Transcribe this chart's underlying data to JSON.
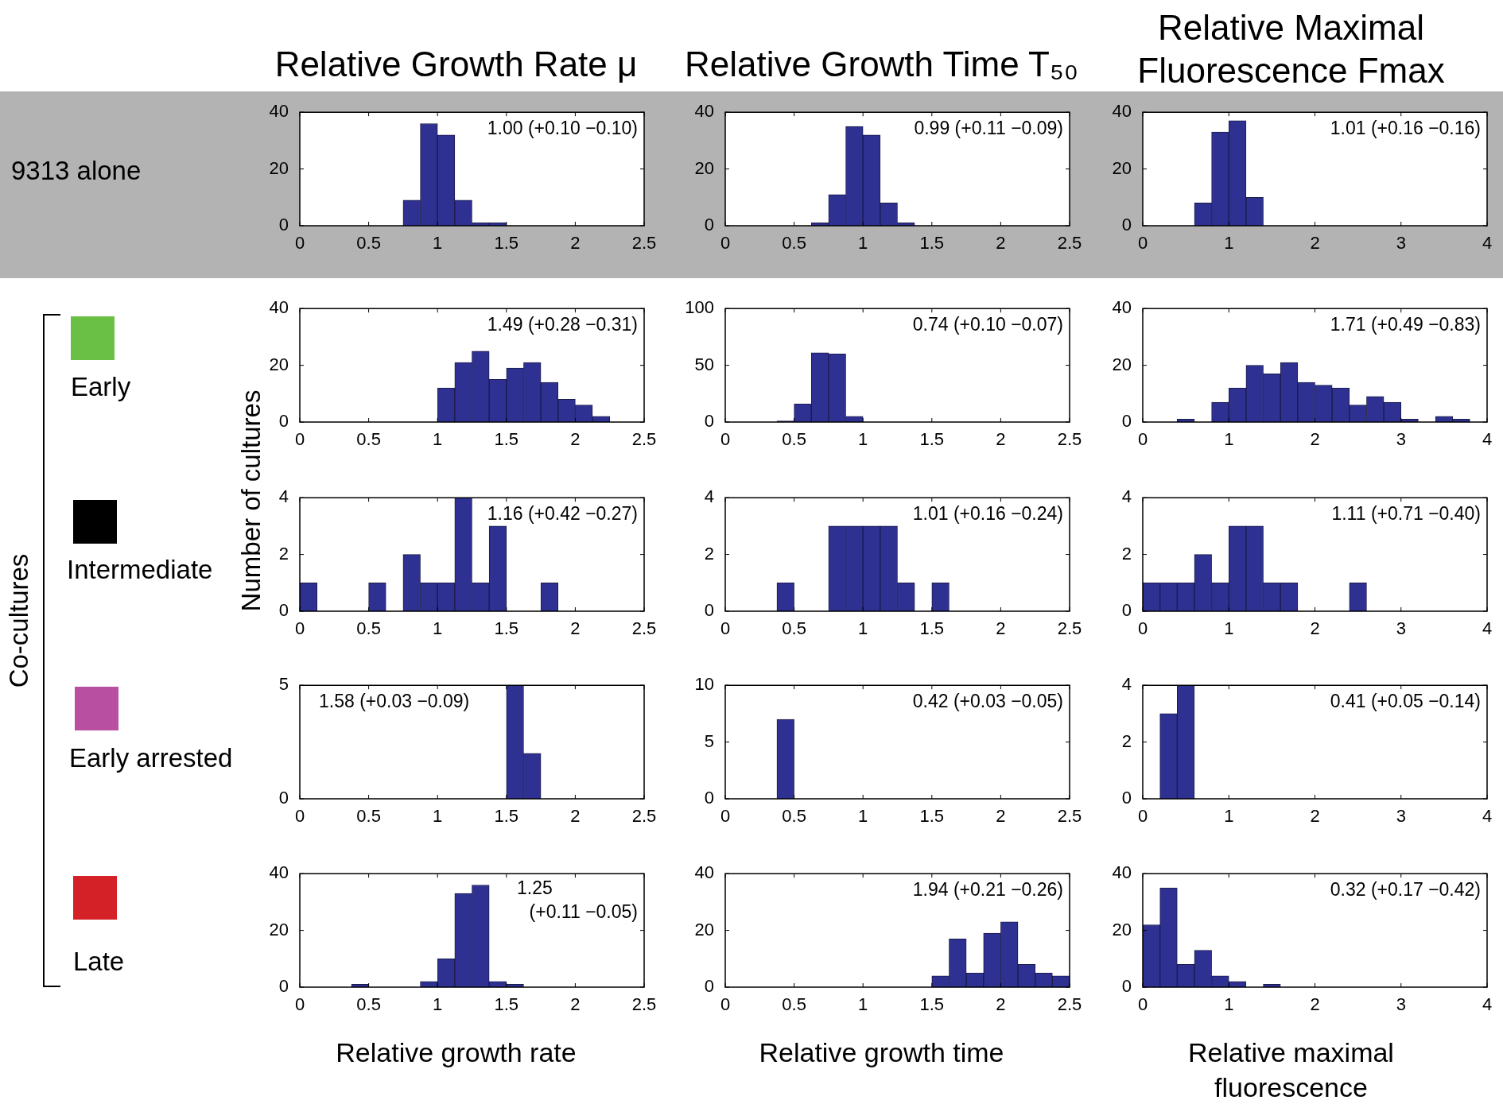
{
  "chart_data": [
    {
      "type": "histogram",
      "title": "Relative Growth Rate μ",
      "color": "#2e3192",
      "annotations": [
        "1.00 (+0.10 −0.10)",
        "9313 alone"
      ],
      "xlim": [
        0,
        2.5
      ],
      "xticks": [
        0,
        0.5,
        1,
        1.5,
        2,
        2.5
      ],
      "ylim": [
        0,
        40
      ],
      "yticks": [
        0,
        20,
        40
      ],
      "bins": [
        0,
        0.125,
        0.25,
        0.375,
        0.5,
        0.625,
        0.75,
        0.875,
        1,
        1.125,
        1.25,
        1.375,
        1.5,
        1.625,
        1.75,
        1.875,
        2,
        2.125,
        2.25,
        2.375,
        2.5
      ],
      "values": [
        0,
        0,
        0,
        0,
        0,
        0,
        9,
        36,
        32,
        9,
        1,
        1,
        0,
        0,
        0,
        0,
        0,
        0,
        0,
        0
      ]
    },
    {
      "type": "histogram",
      "title": "Relative Growth Time T₅₀",
      "color": "#2e3192",
      "annotations": [
        "0.99 (+0.11 −0.09)"
      ],
      "xlim": [
        0,
        2.5
      ],
      "xticks": [
        0,
        0.5,
        1,
        1.5,
        2,
        2.5
      ],
      "ylim": [
        0,
        40
      ],
      "yticks": [
        0,
        20,
        40
      ],
      "bins": [
        0,
        0.125,
        0.25,
        0.375,
        0.5,
        0.625,
        0.75,
        0.875,
        1,
        1.125,
        1.25,
        1.375,
        1.5,
        1.625,
        1.75,
        1.875,
        2,
        2.125,
        2.25,
        2.375,
        2.5
      ],
      "values": [
        0,
        0,
        0,
        0,
        0,
        1,
        11,
        35,
        32,
        8,
        1,
        0,
        0,
        0,
        0,
        0,
        0,
        0,
        0,
        0
      ]
    },
    {
      "type": "histogram",
      "title": "Relative Maximal Fluorescence  Fmax",
      "color": "#2e3192",
      "annotations": [
        "1.01 (+0.16 −0.16)"
      ],
      "xlim": [
        0,
        4
      ],
      "xticks": [
        0,
        1,
        2,
        3,
        4
      ],
      "ylim": [
        0,
        40
      ],
      "yticks": [
        0,
        20,
        40
      ],
      "bins": [
        0,
        0.2,
        0.4,
        0.6,
        0.8,
        1,
        1.2,
        1.4,
        1.6,
        1.8,
        2,
        2.2,
        2.4,
        2.6,
        2.8,
        3,
        3.2,
        3.4,
        3.6,
        3.8,
        4
      ],
      "values": [
        0,
        0,
        0,
        8,
        33,
        37,
        10,
        0,
        0,
        0,
        0,
        0,
        0,
        0,
        0,
        0,
        0,
        0,
        0,
        0
      ]
    },
    {
      "type": "histogram",
      "color": "#2e3192",
      "annotations": [
        "1.49 (+0.28 −0.31)",
        "Early",
        "Co-cultures"
      ],
      "xlim": [
        0,
        2.5
      ],
      "xticks": [
        0,
        0.5,
        1,
        1.5,
        2,
        2.5
      ],
      "ylim": [
        0,
        40
      ],
      "yticks": [
        0,
        20,
        40
      ],
      "bins": [
        0,
        0.125,
        0.25,
        0.375,
        0.5,
        0.625,
        0.75,
        0.875,
        1,
        1.125,
        1.25,
        1.375,
        1.5,
        1.625,
        1.75,
        1.875,
        2,
        2.125,
        2.25,
        2.375,
        2.5
      ],
      "values": [
        0,
        0,
        0,
        0,
        0,
        0,
        0,
        0,
        12,
        21,
        25,
        15,
        19,
        21,
        14,
        8,
        6,
        2,
        0,
        0
      ]
    },
    {
      "type": "histogram",
      "color": "#2e3192",
      "annotations": [
        "0.74 (+0.10 −0.07)"
      ],
      "xlim": [
        0,
        2.5
      ],
      "xticks": [
        0,
        0.5,
        1,
        1.5,
        2,
        2.5
      ],
      "ylim": [
        0,
        100
      ],
      "yticks": [
        0,
        50,
        100
      ],
      "bins": [
        0,
        0.125,
        0.25,
        0.375,
        0.5,
        0.625,
        0.75,
        0.875,
        1,
        1.125,
        1.25,
        1.375,
        1.5,
        1.625,
        1.75,
        1.875,
        2,
        2.125,
        2.25,
        2.375,
        2.5
      ],
      "values": [
        0,
        0,
        0,
        1,
        16,
        61,
        60,
        5,
        0,
        0,
        0,
        0,
        0,
        0,
        0,
        0,
        0,
        0,
        0,
        0
      ]
    },
    {
      "type": "histogram",
      "color": "#2e3192",
      "annotations": [
        "1.71 (+0.49 −0.83)"
      ],
      "xlim": [
        0,
        4
      ],
      "xticks": [
        0,
        1,
        2,
        3,
        4
      ],
      "ylim": [
        0,
        40
      ],
      "yticks": [
        0,
        20,
        40
      ],
      "bins": [
        0,
        0.2,
        0.4,
        0.6,
        0.8,
        1,
        1.2,
        1.4,
        1.6,
        1.8,
        2,
        2.2,
        2.4,
        2.6,
        2.8,
        3,
        3.2,
        3.4,
        3.6,
        3.8,
        4
      ],
      "values": [
        0,
        0,
        1,
        0,
        7,
        12,
        20,
        17,
        21,
        14,
        13,
        12,
        6,
        9,
        7,
        1,
        0,
        2,
        1,
        0
      ]
    },
    {
      "type": "histogram",
      "ylabel": "Number of cultures",
      "color": "#2e3192",
      "annotations": [
        "1.16 (+0.42 −0.27)",
        "Intermediate"
      ],
      "xlim": [
        0,
        2.5
      ],
      "xticks": [
        0,
        0.5,
        1,
        1.5,
        2,
        2.5
      ],
      "ylim": [
        0,
        4
      ],
      "yticks": [
        0,
        2,
        4
      ],
      "bins": [
        0,
        0.125,
        0.25,
        0.375,
        0.5,
        0.625,
        0.75,
        0.875,
        1,
        1.125,
        1.25,
        1.375,
        1.5,
        1.625,
        1.75,
        1.875,
        2,
        2.125,
        2.25,
        2.375,
        2.5
      ],
      "values": [
        1,
        0,
        0,
        0,
        1,
        0,
        2,
        1,
        1,
        4,
        1,
        3,
        0,
        0,
        1,
        0,
        0,
        0,
        0,
        0
      ]
    },
    {
      "type": "histogram",
      "color": "#2e3192",
      "annotations": [
        "1.01 (+0.16 −0.24)"
      ],
      "xlim": [
        0,
        2.5
      ],
      "xticks": [
        0,
        0.5,
        1,
        1.5,
        2,
        2.5
      ],
      "ylim": [
        0,
        4
      ],
      "yticks": [
        0,
        2,
        4
      ],
      "bins": [
        0,
        0.125,
        0.25,
        0.375,
        0.5,
        0.625,
        0.75,
        0.875,
        1,
        1.125,
        1.25,
        1.375,
        1.5,
        1.625,
        1.75,
        1.875,
        2,
        2.125,
        2.25,
        2.375,
        2.5
      ],
      "values": [
        0,
        0,
        0,
        1,
        0,
        0,
        3,
        3,
        3,
        3,
        1,
        0,
        1,
        0,
        0,
        0,
        0,
        0,
        0,
        0
      ]
    },
    {
      "type": "histogram",
      "color": "#2e3192",
      "annotations": [
        "1.11 (+0.71 −0.40)"
      ],
      "xlim": [
        0,
        4
      ],
      "xticks": [
        0,
        1,
        2,
        3,
        4
      ],
      "ylim": [
        0,
        4
      ],
      "yticks": [
        0,
        2,
        4
      ],
      "bins": [
        0,
        0.2,
        0.4,
        0.6,
        0.8,
        1,
        1.2,
        1.4,
        1.6,
        1.8,
        2,
        2.2,
        2.4,
        2.6,
        2.8,
        3,
        3.2,
        3.4,
        3.6,
        3.8,
        4
      ],
      "values": [
        1,
        1,
        1,
        2,
        1,
        3,
        3,
        1,
        1,
        0,
        0,
        0,
        1,
        0,
        0,
        0,
        0,
        0,
        0,
        0
      ]
    },
    {
      "type": "histogram",
      "color": "#2e3192",
      "annotations": [
        "1.58 (+0.03 −0.09)",
        "Early arrested"
      ],
      "xlim": [
        0,
        2.5
      ],
      "xticks": [
        0,
        0.5,
        1,
        1.5,
        2,
        2.5
      ],
      "ylim": [
        0,
        5
      ],
      "yticks": [
        0,
        5
      ],
      "bins": [
        0,
        0.125,
        0.25,
        0.375,
        0.5,
        0.625,
        0.75,
        0.875,
        1,
        1.125,
        1.25,
        1.375,
        1.5,
        1.625,
        1.75,
        1.875,
        2,
        2.125,
        2.25,
        2.375,
        2.5
      ],
      "values": [
        0,
        0,
        0,
        0,
        0,
        0,
        0,
        0,
        0,
        0,
        0,
        0,
        5,
        2,
        0,
        0,
        0,
        0,
        0,
        0
      ]
    },
    {
      "type": "histogram",
      "color": "#2e3192",
      "annotations": [
        "0.42 (+0.03 −0.05)"
      ],
      "xlim": [
        0,
        2.5
      ],
      "xticks": [
        0,
        0.5,
        1,
        1.5,
        2,
        2.5
      ],
      "ylim": [
        0,
        10
      ],
      "yticks": [
        0,
        5,
        10
      ],
      "bins": [
        0,
        0.125,
        0.25,
        0.375,
        0.5,
        0.625,
        0.75,
        0.875,
        1,
        1.125,
        1.25,
        1.375,
        1.5,
        1.625,
        1.75,
        1.875,
        2,
        2.125,
        2.25,
        2.375,
        2.5
      ],
      "values": [
        0,
        0,
        0,
        7,
        0,
        0,
        0,
        0,
        0,
        0,
        0,
        0,
        0,
        0,
        0,
        0,
        0,
        0,
        0,
        0
      ]
    },
    {
      "type": "histogram",
      "color": "#2e3192",
      "annotations": [
        "0.41 (+0.05 −0.14)"
      ],
      "xlim": [
        0,
        4
      ],
      "xticks": [
        0,
        1,
        2,
        3,
        4
      ],
      "ylim": [
        0,
        4
      ],
      "yticks": [
        0,
        2,
        4
      ],
      "bins": [
        0,
        0.2,
        0.4,
        0.6,
        0.8,
        1,
        1.2,
        1.4,
        1.6,
        1.8,
        2,
        2.2,
        2.4,
        2.6,
        2.8,
        3,
        3.2,
        3.4,
        3.6,
        3.8,
        4
      ],
      "values": [
        0,
        3,
        4,
        0,
        0,
        0,
        0,
        0,
        0,
        0,
        0,
        0,
        0,
        0,
        0,
        0,
        0,
        0,
        0,
        0
      ]
    },
    {
      "type": "histogram",
      "xlabel": "Relative growth rate",
      "color": "#2e3192",
      "annotations": [
        "1.25 (+0.11 −0.05)",
        "Late"
      ],
      "xlim": [
        0,
        2.5
      ],
      "xticks": [
        0,
        0.5,
        1,
        1.5,
        2,
        2.5
      ],
      "ylim": [
        0,
        40
      ],
      "yticks": [
        0,
        20,
        40
      ],
      "bins": [
        0,
        0.125,
        0.25,
        0.375,
        0.5,
        0.625,
        0.75,
        0.875,
        1,
        1.125,
        1.25,
        1.375,
        1.5,
        1.625,
        1.75,
        1.875,
        2,
        2.125,
        2.25,
        2.375,
        2.5
      ],
      "values": [
        0,
        0,
        0,
        1,
        0,
        0,
        0,
        2,
        10,
        33,
        36,
        2,
        1,
        0,
        0,
        0,
        0,
        0,
        0,
        0
      ]
    },
    {
      "type": "histogram",
      "xlabel": "Relative growth time",
      "color": "#2e3192",
      "annotations": [
        "1.94 (+0.21 −0.26)"
      ],
      "xlim": [
        0,
        2.5
      ],
      "xticks": [
        0,
        0.5,
        1,
        1.5,
        2,
        2.5
      ],
      "ylim": [
        0,
        40
      ],
      "yticks": [
        0,
        20,
        40
      ],
      "bins": [
        0,
        0.125,
        0.25,
        0.375,
        0.5,
        0.625,
        0.75,
        0.875,
        1,
        1.125,
        1.25,
        1.375,
        1.5,
        1.625,
        1.75,
        1.875,
        2,
        2.125,
        2.25,
        2.375,
        2.5
      ],
      "values": [
        0,
        0,
        0,
        0,
        0,
        0,
        0,
        0,
        0,
        0,
        0,
        0,
        4,
        17,
        5,
        19,
        23,
        8,
        5,
        4
      ]
    },
    {
      "type": "histogram",
      "xlabel": "Relative maximal fluorescence",
      "color": "#2e3192",
      "annotations": [
        "0.32 (+0.17 −0.42)"
      ],
      "xlim": [
        0,
        4
      ],
      "xticks": [
        0,
        1,
        2,
        3,
        4
      ],
      "ylim": [
        0,
        40
      ],
      "yticks": [
        0,
        20,
        40
      ],
      "bins": [
        0,
        0.2,
        0.4,
        0.6,
        0.8,
        1,
        1.2,
        1.4,
        1.6,
        1.8,
        2,
        2.2,
        2.4,
        2.6,
        2.8,
        3,
        3.2,
        3.4,
        3.6,
        3.8,
        4
      ],
      "values": [
        22,
        35,
        8,
        13,
        4,
        2,
        0,
        1,
        0,
        0,
        0,
        0,
        0,
        0,
        0,
        0,
        0,
        0,
        0,
        0
      ]
    }
  ]
}
